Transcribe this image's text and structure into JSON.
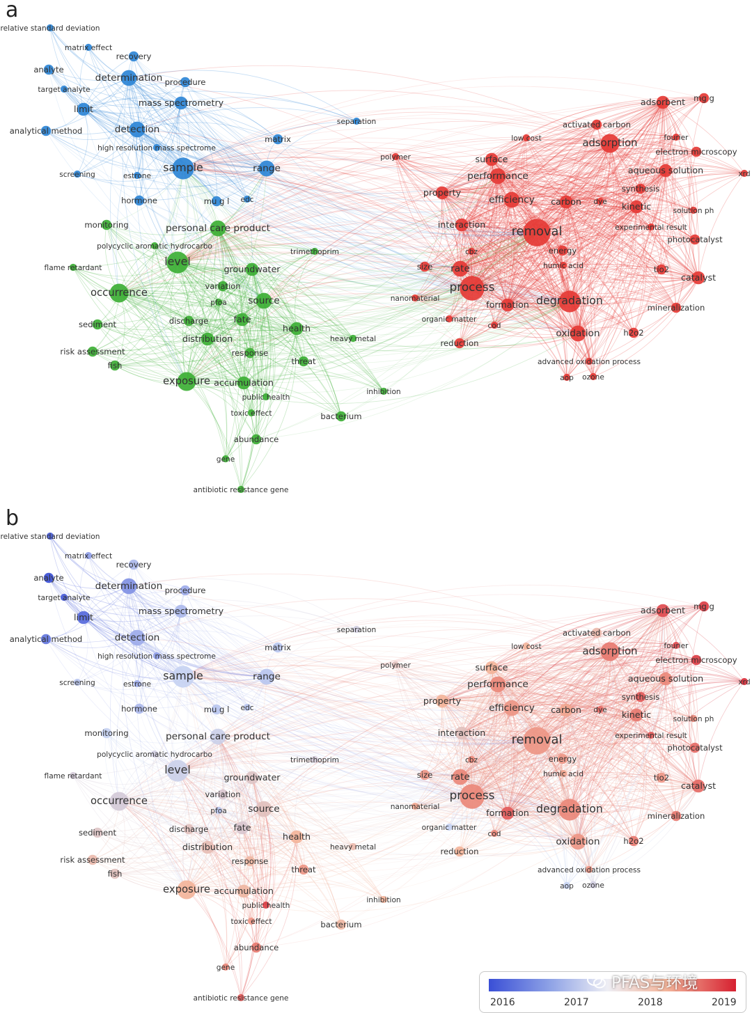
{
  "panels": [
    {
      "letter": "a",
      "mode": "cluster"
    },
    {
      "letter": "b",
      "mode": "year"
    }
  ],
  "colors": {
    "cluster_blue": "#2e86d6",
    "cluster_green": "#3daf35",
    "cluster_red": "#e53935",
    "year_2016": "#3a4fd6",
    "year_2017": "#c7d3f2",
    "year_2018": "#f3b49a",
    "year_2019": "#d62030"
  },
  "legend": {
    "ticks": [
      "2016",
      "2017",
      "2018",
      "2019"
    ]
  },
  "watermark": {
    "text": "PFAS与环境",
    "icon": "wechat-icon"
  },
  "nodes": [
    {
      "id": "relative standard deviation",
      "cluster": "blue",
      "weight": 1,
      "year": 2016.1
    },
    {
      "id": "matrix effect",
      "cluster": "blue",
      "weight": 1,
      "year": 2016.6
    },
    {
      "id": "recovery",
      "cluster": "blue",
      "weight": 2,
      "year": 2016.8
    },
    {
      "id": "analyte",
      "cluster": "blue",
      "weight": 2,
      "year": 2016.0
    },
    {
      "id": "determination",
      "cluster": "blue",
      "weight": 4,
      "year": 2016.5
    },
    {
      "id": "procedure",
      "cluster": "blue",
      "weight": 2,
      "year": 2016.7
    },
    {
      "id": "target analyte",
      "cluster": "blue",
      "weight": 1,
      "year": 2016.1
    },
    {
      "id": "mass spectrometry",
      "cluster": "blue",
      "weight": 3,
      "year": 2016.8
    },
    {
      "id": "limit",
      "cluster": "blue",
      "weight": 3,
      "year": 2016.2
    },
    {
      "id": "analytical method",
      "cluster": "blue",
      "weight": 2,
      "year": 2016.3
    },
    {
      "id": "detection",
      "cluster": "blue",
      "weight": 4,
      "year": 2016.7
    },
    {
      "id": "high resolution mass spectrome",
      "cluster": "blue",
      "weight": 1,
      "year": 2016.6
    },
    {
      "id": "separation",
      "cluster": "blue",
      "weight": 1,
      "year": 2017.2
    },
    {
      "id": "matrix",
      "cluster": "blue",
      "weight": 2,
      "year": 2016.9
    },
    {
      "id": "screening",
      "cluster": "blue",
      "weight": 1,
      "year": 2016.9
    },
    {
      "id": "estrone",
      "cluster": "blue",
      "weight": 1,
      "year": 2016.7
    },
    {
      "id": "sample",
      "cluster": "blue",
      "weight": 6,
      "year": 2017.0
    },
    {
      "id": "range",
      "cluster": "blue",
      "weight": 4,
      "year": 2016.9
    },
    {
      "id": "hormone",
      "cluster": "blue",
      "weight": 2,
      "year": 2016.8
    },
    {
      "id": "mu g l",
      "cluster": "blue",
      "weight": 2,
      "year": 2016.9
    },
    {
      "id": "edc",
      "cluster": "blue",
      "weight": 1,
      "year": 2016.9
    },
    {
      "id": "monitoring",
      "cluster": "green",
      "weight": 2,
      "year": 2017.0
    },
    {
      "id": "personal care product",
      "cluster": "green",
      "weight": 4,
      "year": 2017.1
    },
    {
      "id": "polycyclic aromatic hydrocarbo",
      "cluster": "green",
      "weight": 1,
      "year": 2017.2
    },
    {
      "id": "trimethoprim",
      "cluster": "green",
      "weight": 1,
      "year": 2017.3
    },
    {
      "id": "flame retardant",
      "cluster": "green",
      "weight": 1,
      "year": 2017.3
    },
    {
      "id": "level",
      "cluster": "green",
      "weight": 6,
      "year": 2017.1
    },
    {
      "id": "groundwater",
      "cluster": "green",
      "weight": 3,
      "year": 2017.5
    },
    {
      "id": "variation",
      "cluster": "green",
      "weight": 2,
      "year": 2017.4
    },
    {
      "id": "occurrence",
      "cluster": "green",
      "weight": 5,
      "year": 2017.3
    },
    {
      "id": "pfoa",
      "cluster": "green",
      "weight": 1,
      "year": 2016.9
    },
    {
      "id": "source",
      "cluster": "green",
      "weight": 4,
      "year": 2017.6
    },
    {
      "id": "sediment",
      "cluster": "green",
      "weight": 2,
      "year": 2017.5
    },
    {
      "id": "discharge",
      "cluster": "green",
      "weight": 2,
      "year": 2017.6
    },
    {
      "id": "fate",
      "cluster": "green",
      "weight": 3,
      "year": 2017.4
    },
    {
      "id": "health",
      "cluster": "green",
      "weight": 3,
      "year": 2018.0
    },
    {
      "id": "distribution",
      "cluster": "green",
      "weight": 3,
      "year": 2017.7
    },
    {
      "id": "risk assessment",
      "cluster": "green",
      "weight": 2,
      "year": 2017.8
    },
    {
      "id": "heavy metal",
      "cluster": "green",
      "weight": 1,
      "year": 2017.8
    },
    {
      "id": "response",
      "cluster": "green",
      "weight": 2,
      "year": 2017.9
    },
    {
      "id": "fish",
      "cluster": "green",
      "weight": 2,
      "year": 2017.6
    },
    {
      "id": "threat",
      "cluster": "green",
      "weight": 2,
      "year": 2018.2
    },
    {
      "id": "exposure",
      "cluster": "green",
      "weight": 5,
      "year": 2018.0
    },
    {
      "id": "accumulation",
      "cluster": "green",
      "weight": 3,
      "year": 2017.9
    },
    {
      "id": "public health",
      "cluster": "green",
      "weight": 1,
      "year": 2018.8
    },
    {
      "id": "inhibition",
      "cluster": "green",
      "weight": 1,
      "year": 2018.0
    },
    {
      "id": "toxic effect",
      "cluster": "green",
      "weight": 1,
      "year": 2018.2
    },
    {
      "id": "bacterium",
      "cluster": "green",
      "weight": 2,
      "year": 2017.9
    },
    {
      "id": "abundance",
      "cluster": "green",
      "weight": 2,
      "year": 2018.4
    },
    {
      "id": "gene",
      "cluster": "green",
      "weight": 1,
      "year": 2018.3
    },
    {
      "id": "antibiotic resistance gene",
      "cluster": "green",
      "weight": 1,
      "year": 2018.6
    },
    {
      "id": "polymer",
      "cluster": "red",
      "weight": 1,
      "year": 2017.6
    },
    {
      "id": "low cost",
      "cluster": "red",
      "weight": 1,
      "year": 2018.0
    },
    {
      "id": "activated carbon",
      "cluster": "red",
      "weight": 2,
      "year": 2017.8
    },
    {
      "id": "adsorbent",
      "cluster": "red",
      "weight": 3,
      "year": 2018.7
    },
    {
      "id": "mg g",
      "cluster": "red",
      "weight": 2,
      "year": 2018.8
    },
    {
      "id": "fourier",
      "cluster": "red",
      "weight": 1,
      "year": 2018.7
    },
    {
      "id": "electron microscopy",
      "cluster": "red",
      "weight": 2,
      "year": 2018.8
    },
    {
      "id": "xrd",
      "cluster": "red",
      "weight": 1,
      "year": 2018.9
    },
    {
      "id": "adsorption",
      "cluster": "red",
      "weight": 5,
      "year": 2018.4
    },
    {
      "id": "surface",
      "cluster": "red",
      "weight": 3,
      "year": 2018.0
    },
    {
      "id": "performance",
      "cluster": "red",
      "weight": 4,
      "year": 2018.3
    },
    {
      "id": "aqueous solution",
      "cluster": "red",
      "weight": 3,
      "year": 2018.3
    },
    {
      "id": "synthesis",
      "cluster": "red",
      "weight": 2,
      "year": 2018.6
    },
    {
      "id": "property",
      "cluster": "red",
      "weight": 3,
      "year": 2018.0
    },
    {
      "id": "efficiency",
      "cluster": "red",
      "weight": 4,
      "year": 2018.2
    },
    {
      "id": "carbon",
      "cluster": "red",
      "weight": 3,
      "year": 2018.1
    },
    {
      "id": "dye",
      "cluster": "red",
      "weight": 1,
      "year": 2018.5
    },
    {
      "id": "kinetic",
      "cluster": "red",
      "weight": 3,
      "year": 2018.4
    },
    {
      "id": "solution ph",
      "cluster": "red",
      "weight": 1,
      "year": 2018.3
    },
    {
      "id": "interaction",
      "cluster": "red",
      "weight": 3,
      "year": 2017.6
    },
    {
      "id": "removal",
      "cluster": "red",
      "weight": 8,
      "year": 2018.2
    },
    {
      "id": "experimental result",
      "cluster": "red",
      "weight": 1,
      "year": 2018.6
    },
    {
      "id": "photocatalyst",
      "cluster": "red",
      "weight": 2,
      "year": 2018.5
    },
    {
      "id": "cbz",
      "cluster": "red",
      "weight": 1,
      "year": 2018.3
    },
    {
      "id": "energy",
      "cluster": "red",
      "weight": 2,
      "year": 2018.2
    },
    {
      "id": "humic acid",
      "cluster": "red",
      "weight": 1,
      "year": 2018.1
    },
    {
      "id": "size",
      "cluster": "red",
      "weight": 2,
      "year": 2018.2
    },
    {
      "id": "rate",
      "cluster": "red",
      "weight": 4,
      "year": 2018.3
    },
    {
      "id": "tio2",
      "cluster": "red",
      "weight": 2,
      "year": 2018.2
    },
    {
      "id": "catalyst",
      "cluster": "red",
      "weight": 3,
      "year": 2018.5
    },
    {
      "id": "nanomaterial",
      "cluster": "red",
      "weight": 1,
      "year": 2018.1
    },
    {
      "id": "process",
      "cluster": "red",
      "weight": 7,
      "year": 2018.3
    },
    {
      "id": "formation",
      "cluster": "red",
      "weight": 3,
      "year": 2018.6
    },
    {
      "id": "degradation",
      "cluster": "red",
      "weight": 6,
      "year": 2018.3
    },
    {
      "id": "mineralization",
      "cluster": "red",
      "weight": 2,
      "year": 2018.4
    },
    {
      "id": "organic matter",
      "cluster": "red",
      "weight": 1,
      "year": 2017.0
    },
    {
      "id": "cod",
      "cluster": "red",
      "weight": 1,
      "year": 2018.3
    },
    {
      "id": "oxidation",
      "cluster": "red",
      "weight": 4,
      "year": 2018.2
    },
    {
      "id": "h2o2",
      "cluster": "red",
      "weight": 2,
      "year": 2018.4
    },
    {
      "id": "reduction",
      "cluster": "red",
      "weight": 2,
      "year": 2018.0
    },
    {
      "id": "advanced oxidation process",
      "cluster": "red",
      "weight": 1,
      "year": 2018.2
    },
    {
      "id": "aop",
      "cluster": "red",
      "weight": 1,
      "year": 2017.0
    },
    {
      "id": "ozone",
      "cluster": "red",
      "weight": 1,
      "year": 2017.2
    }
  ]
}
